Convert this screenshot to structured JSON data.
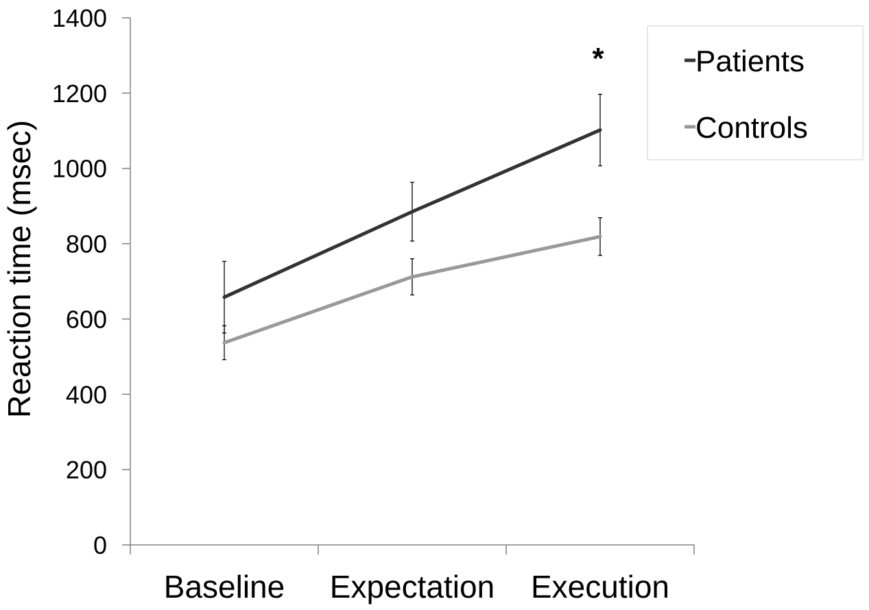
{
  "chart_data": {
    "type": "line",
    "categories": [
      "Baseline",
      "Expectation",
      "Execution"
    ],
    "ylabel": "Reaction time (msec)",
    "xlabel": "",
    "ylim": [
      0,
      1400
    ],
    "yticks": [
      0,
      200,
      400,
      600,
      800,
      1000,
      1200,
      1400
    ],
    "grid": false,
    "legend_position": "top-right",
    "series": [
      {
        "name": "Patients",
        "color": "#333333",
        "values": [
          658,
          885,
          1102
        ],
        "error": [
          95,
          78,
          95
        ]
      },
      {
        "name": "Controls",
        "color": "#999999",
        "values": [
          537,
          712,
          819
        ],
        "error": [
          45,
          48,
          50
        ]
      }
    ],
    "annotations": [
      {
        "text": "*",
        "category": "Execution"
      }
    ]
  }
}
